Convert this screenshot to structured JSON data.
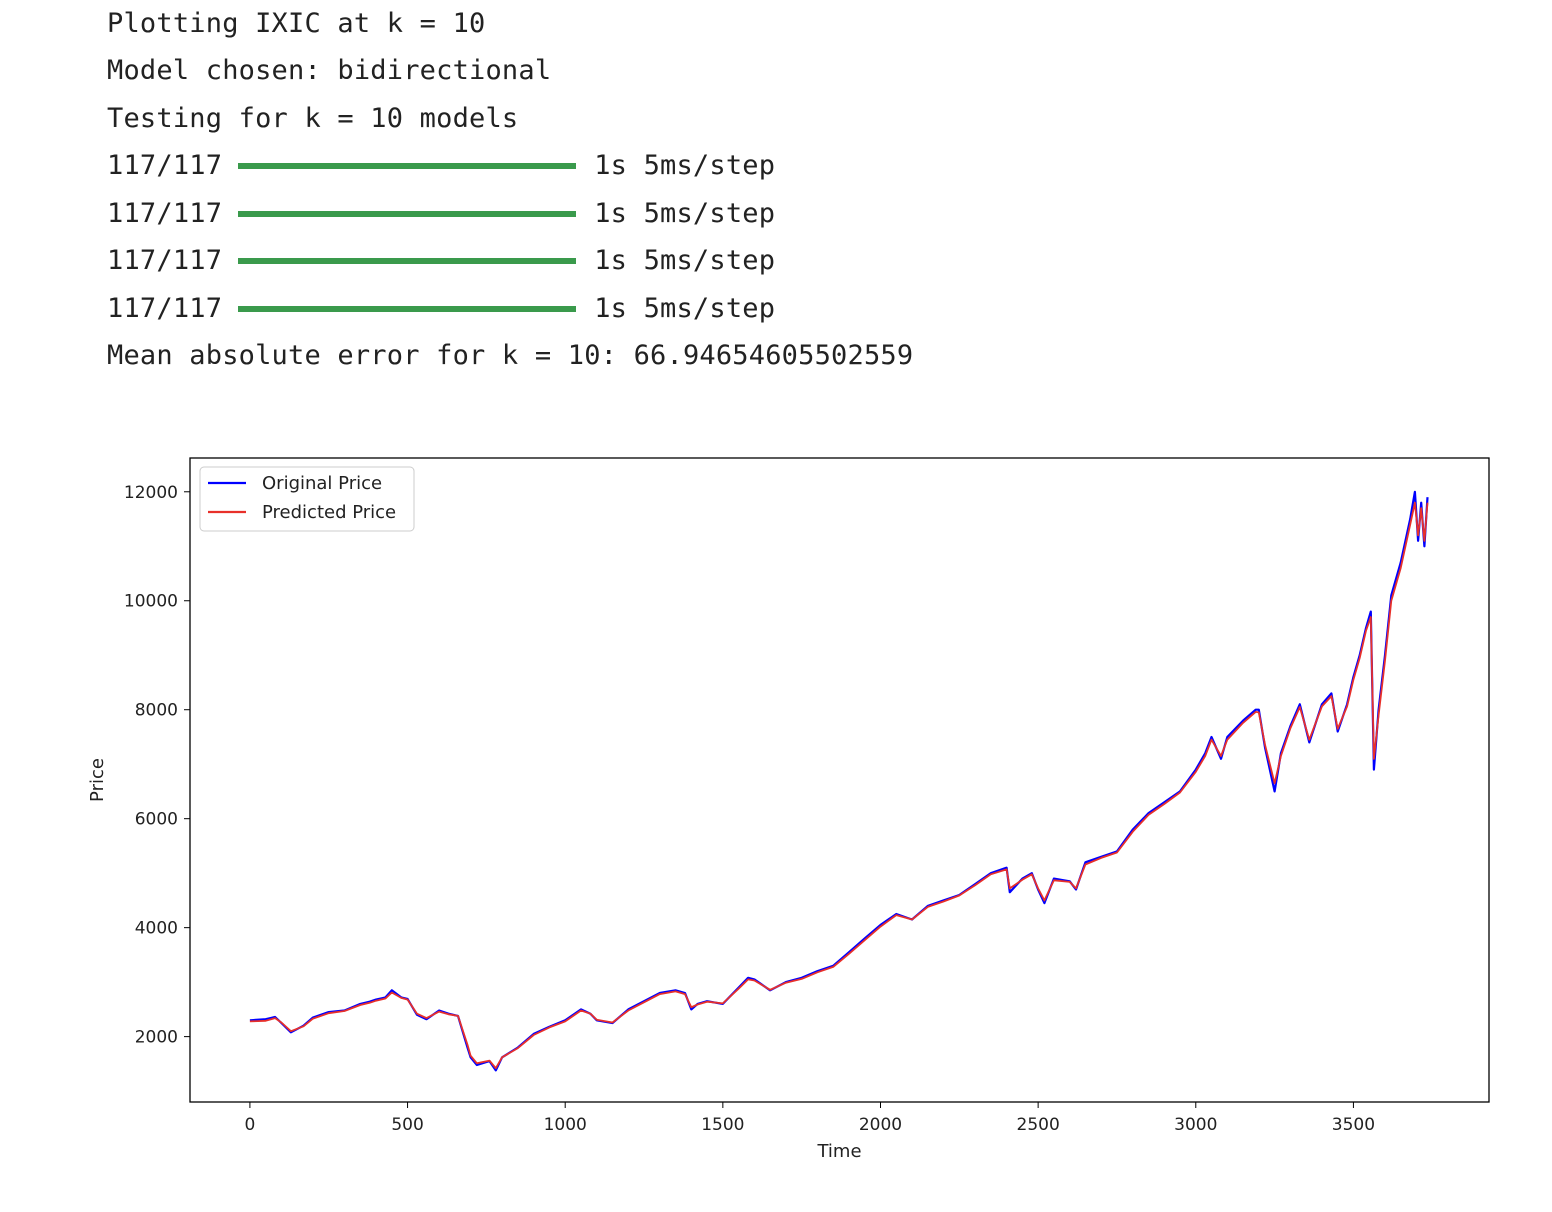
{
  "console": {
    "lines": [
      "Plotting IXIC at k = 10",
      "Model chosen: bidirectional",
      "Testing for k = 10 models"
    ],
    "progress": [
      {
        "count": "117/117",
        "fraction": 1.0,
        "time": "1s 5ms/step"
      },
      {
        "count": "117/117",
        "fraction": 1.0,
        "time": "1s 5ms/step"
      },
      {
        "count": "117/117",
        "fraction": 1.0,
        "time": "1s 5ms/step"
      },
      {
        "count": "117/117",
        "fraction": 1.0,
        "time": "1s 5ms/step"
      }
    ],
    "result": "Mean absolute error for k = 10: 66.94654605502559",
    "progress_color": "#3a9a4c"
  },
  "chart_data": {
    "type": "line",
    "title": "",
    "xlabel": "Time",
    "ylabel": "Price",
    "xlim": [
      -190,
      3930
    ],
    "ylim": [
      800,
      12620
    ],
    "xticks": [
      0,
      500,
      1000,
      1500,
      2000,
      2500,
      3000,
      3500
    ],
    "yticks": [
      2000,
      4000,
      6000,
      8000,
      10000,
      12000
    ],
    "grid": false,
    "legend": "top-left",
    "x": [
      0,
      50,
      80,
      100,
      130,
      170,
      200,
      250,
      300,
      350,
      380,
      400,
      430,
      450,
      480,
      500,
      530,
      560,
      600,
      630,
      660,
      690,
      700,
      720,
      760,
      780,
      800,
      850,
      900,
      950,
      1000,
      1050,
      1080,
      1100,
      1150,
      1200,
      1250,
      1300,
      1350,
      1380,
      1400,
      1420,
      1450,
      1500,
      1550,
      1580,
      1600,
      1650,
      1700,
      1750,
      1800,
      1850,
      1900,
      1950,
      2000,
      2050,
      2100,
      2150,
      2200,
      2250,
      2300,
      2350,
      2400,
      2410,
      2450,
      2480,
      2500,
      2520,
      2550,
      2600,
      2620,
      2650,
      2700,
      2750,
      2800,
      2850,
      2900,
      2950,
      3000,
      3030,
      3050,
      3080,
      3100,
      3150,
      3190,
      3200,
      3220,
      3250,
      3270,
      3300,
      3330,
      3360,
      3400,
      3430,
      3450,
      3480,
      3500,
      3520,
      3540,
      3555,
      3565,
      3580,
      3600,
      3620,
      3650,
      3680,
      3695,
      3705,
      3715,
      3725,
      3735
    ],
    "series": [
      {
        "name": "Original Price",
        "color": "#0000ff",
        "values": [
          2300,
          2320,
          2360,
          2250,
          2080,
          2200,
          2350,
          2450,
          2480,
          2600,
          2640,
          2680,
          2720,
          2850,
          2720,
          2690,
          2400,
          2320,
          2480,
          2420,
          2380,
          1800,
          1620,
          1480,
          1550,
          1380,
          1620,
          1800,
          2050,
          2180,
          2300,
          2500,
          2420,
          2300,
          2250,
          2500,
          2650,
          2800,
          2850,
          2800,
          2500,
          2600,
          2650,
          2600,
          2900,
          3080,
          3050,
          2850,
          3000,
          3080,
          3200,
          3300,
          3550,
          3800,
          4050,
          4250,
          4150,
          4400,
          4500,
          4600,
          4800,
          5000,
          5100,
          4650,
          4900,
          5000,
          4700,
          4450,
          4900,
          4850,
          4700,
          5200,
          5300,
          5400,
          5800,
          6100,
          6300,
          6500,
          6900,
          7200,
          7500,
          7100,
          7500,
          7800,
          8000,
          8000,
          7300,
          6500,
          7200,
          7700,
          8100,
          7400,
          8100,
          8300,
          7600,
          8100,
          8600,
          9000,
          9500,
          9800,
          6900,
          8000,
          9000,
          10100,
          10700,
          11500,
          12000,
          11100,
          11800,
          11000,
          11900
        ]
      },
      {
        "name": "Predicted Price",
        "color": "#e8302a",
        "values": [
          2280,
          2290,
          2340,
          2260,
          2100,
          2190,
          2330,
          2430,
          2470,
          2580,
          2620,
          2660,
          2700,
          2810,
          2710,
          2680,
          2420,
          2340,
          2460,
          2410,
          2380,
          1850,
          1650,
          1510,
          1560,
          1420,
          1620,
          1790,
          2030,
          2170,
          2280,
          2480,
          2420,
          2310,
          2260,
          2480,
          2630,
          2780,
          2830,
          2780,
          2540,
          2590,
          2640,
          2610,
          2880,
          3050,
          3030,
          2860,
          2990,
          3060,
          3180,
          3280,
          3520,
          3770,
          4020,
          4230,
          4150,
          4380,
          4480,
          4590,
          4780,
          4980,
          5070,
          4720,
          4880,
          4980,
          4720,
          4500,
          4870,
          4840,
          4720,
          5160,
          5280,
          5380,
          5760,
          6070,
          6270,
          6480,
          6860,
          7150,
          7450,
          7150,
          7450,
          7760,
          7960,
          7950,
          7350,
          6650,
          7150,
          7660,
          8050,
          7450,
          8060,
          8250,
          7650,
          8060,
          8550,
          8950,
          9450,
          9700,
          7100,
          7900,
          8900,
          10000,
          10600,
          11400,
          11800,
          11200,
          11700,
          11100,
          11800
        ]
      }
    ]
  }
}
